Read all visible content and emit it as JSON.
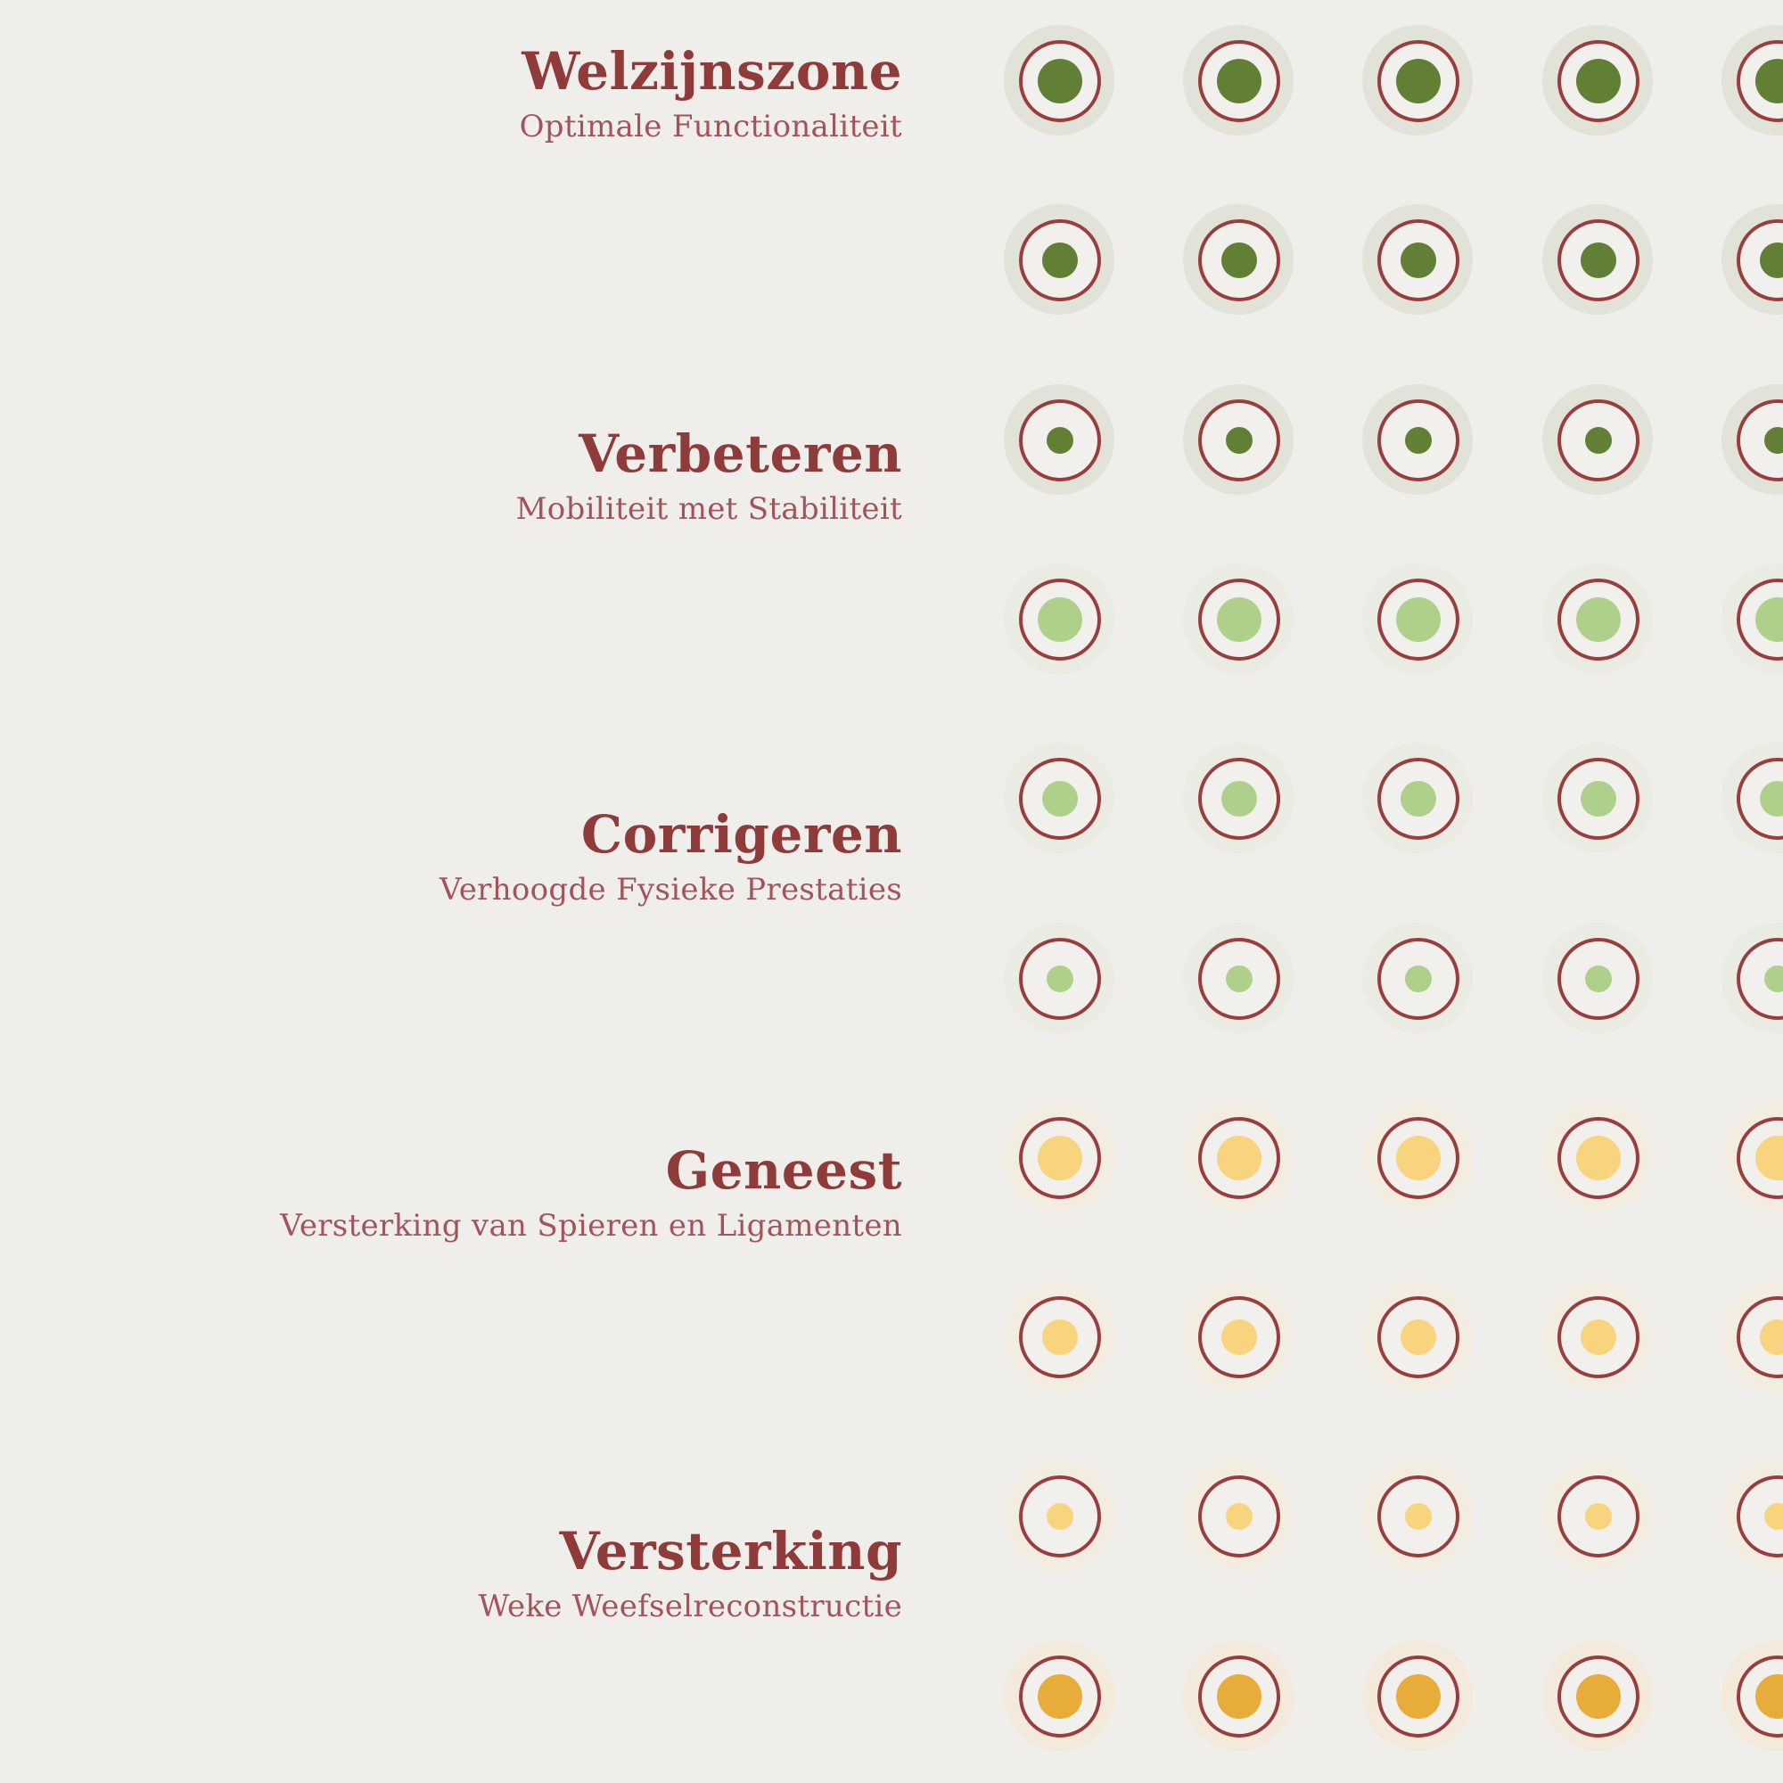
{
  "zones": [
    {
      "title": "Welzijnszone",
      "subtitle": "Optimale Functionaliteit"
    },
    {
      "title": "Verbeteren",
      "subtitle": "Mobiliteit met Stabiliteit"
    },
    {
      "title": "Corrigeren",
      "subtitle": "Verhoogde Fysieke Prestaties"
    },
    {
      "title": "Geneest",
      "subtitle": "Versterking van Spieren en Ligamenten"
    },
    {
      "title": "Versterking",
      "subtitle": "Weke Weefselreconstructie"
    }
  ],
  "colors": {
    "text": "#8f3b3a",
    "ring": "#9a3d3d",
    "background": "#efeeea",
    "dark_green": "#617f35",
    "light_green": "#aed08b",
    "light_yellow": "#f8d47f",
    "amber": "#e8ac3a"
  },
  "dot_rows": [
    {
      "color": "dark_green",
      "dot_level": 1.0
    },
    {
      "color": "dark_green",
      "dot_level": 0.8
    },
    {
      "color": "dark_green",
      "dot_level": 0.6
    },
    {
      "color": "light_green",
      "dot_level": 1.0
    },
    {
      "color": "light_green",
      "dot_level": 0.8
    },
    {
      "color": "light_green",
      "dot_level": 0.6
    },
    {
      "color": "light_yellow",
      "dot_level": 1.0
    },
    {
      "color": "light_yellow",
      "dot_level": 0.8
    },
    {
      "color": "light_yellow",
      "dot_level": 0.6
    },
    {
      "color": "amber",
      "dot_level": 1.0
    }
  ]
}
